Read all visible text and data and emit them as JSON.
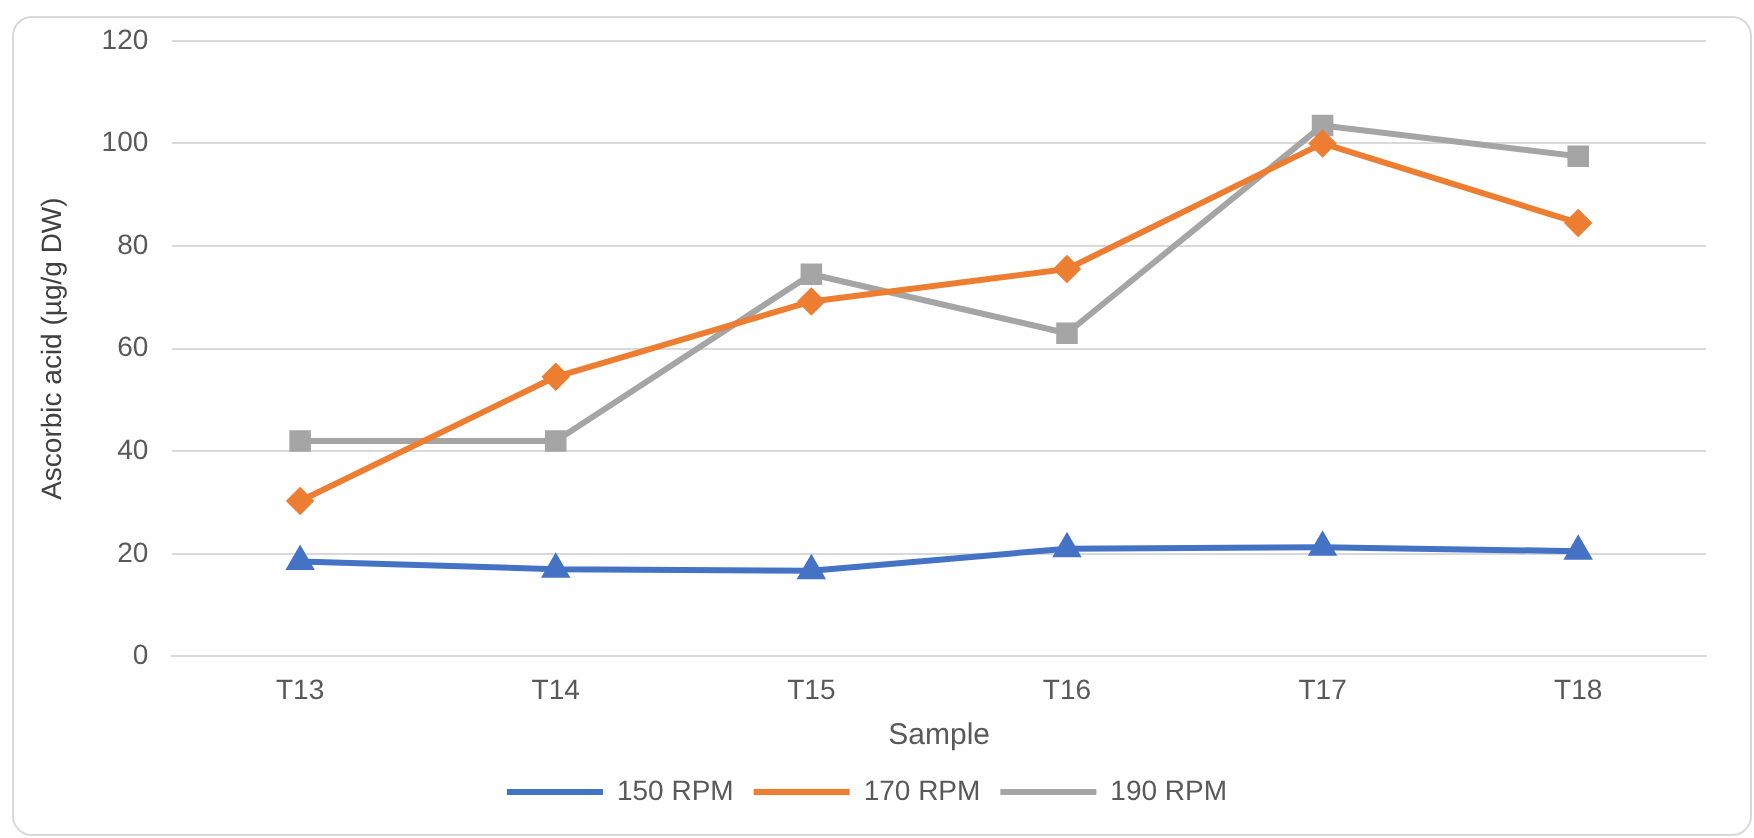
{
  "chart_data": {
    "type": "line",
    "xlabel": "Sample",
    "ylabel": "Ascorbic acid (µg/g DW)",
    "categories": [
      "T13",
      "T14",
      "T15",
      "T16",
      "T17",
      "T18"
    ],
    "ylim": [
      0,
      120
    ],
    "yticks": [
      0,
      20,
      40,
      60,
      80,
      100,
      120
    ],
    "grid": "y",
    "legend": "bottom",
    "line_style": "solid",
    "series": [
      {
        "name": "150 RPM",
        "color": "#4472c4",
        "marker": "triangle",
        "values": [
          18.5,
          17,
          16.7,
          21,
          21.3,
          20.5
        ]
      },
      {
        "name": "170 RPM",
        "color": "#ed7d31",
        "marker": "diamond",
        "values": [
          30.3,
          54.5,
          69.2,
          75.5,
          100,
          84.5
        ]
      },
      {
        "name": "190 RPM",
        "color": "#a5a5a5",
        "marker": "square",
        "values": [
          42,
          42,
          74.5,
          63,
          103.5,
          97.5
        ]
      }
    ]
  }
}
